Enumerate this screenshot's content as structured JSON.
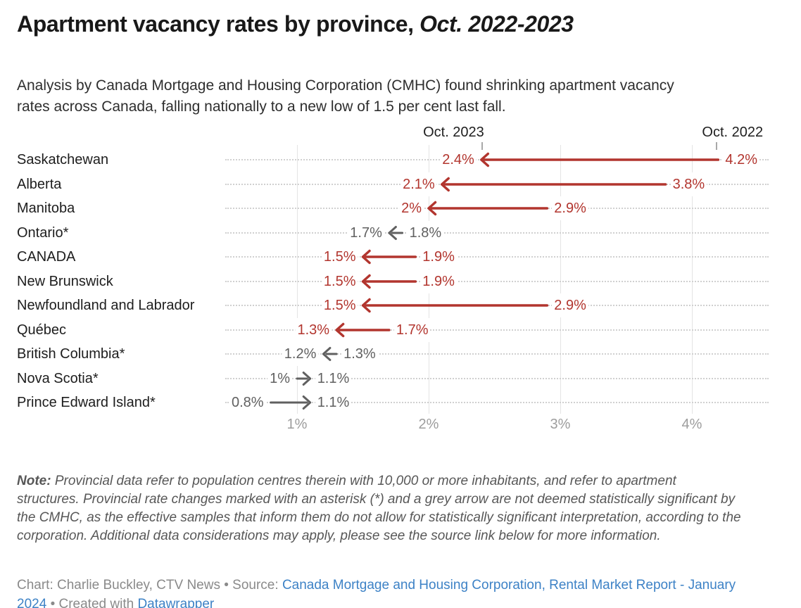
{
  "header": {
    "title_regular": "Apartment vacancy rates by province, ",
    "title_italic": "Oct. 2022-2023",
    "subtitle": "Analysis by Canada Mortgage and Housing Corporation (CMHC) found shrinking apartment vacancy rates across Canada, falling nationally to a new low of 1.5 per cent last fall."
  },
  "chart_data": {
    "type": "arrow",
    "title": "Apartment vacancy rates by province, Oct. 2022-2023",
    "column_headers": {
      "end": "Oct. 2023",
      "start": "Oct. 2022"
    },
    "x_axis": {
      "tick_labels": [
        "1%",
        "2%",
        "3%",
        "4%"
      ],
      "tick_values": [
        1,
        2,
        3,
        4
      ],
      "range": [
        0.55,
        4.65
      ],
      "grid": true
    },
    "rows": [
      {
        "label": "Saskatchewan",
        "oct_2022": 4.2,
        "oct_2023": 2.4,
        "label_2022": "4.2%",
        "label_2023": "2.4%",
        "significant": true
      },
      {
        "label": "Alberta",
        "oct_2022": 3.8,
        "oct_2023": 2.1,
        "label_2022": "3.8%",
        "label_2023": "2.1%",
        "significant": true
      },
      {
        "label": "Manitoba",
        "oct_2022": 2.9,
        "oct_2023": 2.0,
        "label_2022": "2.9%",
        "label_2023": "2%",
        "significant": true
      },
      {
        "label": "Ontario*",
        "oct_2022": 1.8,
        "oct_2023": 1.7,
        "label_2022": "1.8%",
        "label_2023": "1.7%",
        "significant": false
      },
      {
        "label": "CANADA",
        "oct_2022": 1.9,
        "oct_2023": 1.5,
        "label_2022": "1.9%",
        "label_2023": "1.5%",
        "significant": true
      },
      {
        "label": "New Brunswick",
        "oct_2022": 1.9,
        "oct_2023": 1.5,
        "label_2022": "1.9%",
        "label_2023": "1.5%",
        "significant": true
      },
      {
        "label": "Newfoundland and Labrador",
        "oct_2022": 2.9,
        "oct_2023": 1.5,
        "label_2022": "2.9%",
        "label_2023": "1.5%",
        "significant": true
      },
      {
        "label": "Québec",
        "oct_2022": 1.7,
        "oct_2023": 1.3,
        "label_2022": "1.7%",
        "label_2023": "1.3%",
        "significant": true
      },
      {
        "label": "British Columbia*",
        "oct_2022": 1.3,
        "oct_2023": 1.2,
        "label_2022": "1.3%",
        "label_2023": "1.2%",
        "significant": false
      },
      {
        "label": "Nova Scotia*",
        "oct_2022": 1.0,
        "oct_2023": 1.1,
        "label_2022": "1%",
        "label_2023": "1.1%",
        "significant": false
      },
      {
        "label": "Prince Edward Island*",
        "oct_2022": 0.8,
        "oct_2023": 1.1,
        "label_2022": "0.8%",
        "label_2023": "1.1%",
        "significant": false
      }
    ],
    "colors": {
      "significant": "#b2352e",
      "not_significant": "#606060",
      "gridline": "#e4e4e4",
      "leader_dots": "#d0d0d0",
      "axis_label": "#9d9d9d",
      "column_header": "#1f1f1f",
      "tick_mark": "#a9a9a9"
    },
    "legend_position": "top-anchored-to-first-row"
  },
  "note": {
    "label": "Note:",
    "text": " Provincial data refer to population centres therein with 10,000 or more inhabitants, and refer to apartment structures. Provincial rate changes marked with an asterisk (*) and a grey arrow are not deemed statistically significant by the CMHC, as the effective samples that inform them do not allow for statistically significant interpretation, according to the corporation. Additional data considerations may apply, please see the source link below for more information."
  },
  "credit": {
    "chart_prefix": "Chart: Charlie Buckley, CTV News",
    "separator": "•",
    "source_label": "Source:",
    "source_link": "Canada Mortgage and Housing Corporation, Rental Market Report - January 2024",
    "created_with": "Created with",
    "tool_link": "Datawrapper"
  }
}
